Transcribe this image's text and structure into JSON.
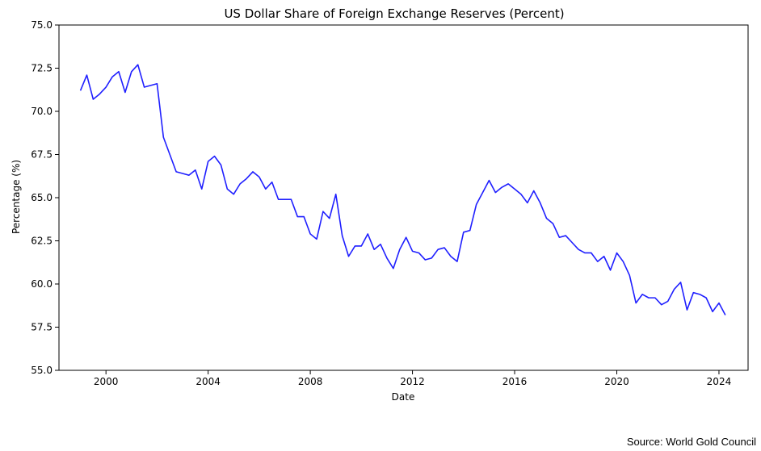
{
  "colors": {
    "line": "#1f1fff",
    "axis": "#000000",
    "background": "#ffffff"
  },
  "source_note": "Source: World Gold Council",
  "chart_data": {
    "type": "line",
    "title": "US Dollar Share of Foreign Exchange Reserves (Percent)",
    "xlabel": "Date",
    "ylabel": "Percentage (%)",
    "xlim": [
      1998.16,
      2025.14
    ],
    "ylim": [
      55.0,
      75.0
    ],
    "grid": false,
    "x_ticks": [
      2000,
      2004,
      2008,
      2012,
      2016,
      2020,
      2024
    ],
    "x_tick_labels": [
      "2000",
      "2004",
      "2008",
      "2012",
      "2016",
      "2020",
      "2024"
    ],
    "y_ticks": [
      55.0,
      57.5,
      60.0,
      62.5,
      65.0,
      67.5,
      70.0,
      72.5,
      75.0
    ],
    "y_tick_labels": [
      "55.0",
      "57.5",
      "60.0",
      "62.5",
      "65.0",
      "67.5",
      "70.0",
      "72.5",
      "75.0"
    ],
    "series": [
      {
        "x": [
          1999.0,
          1999.25,
          1999.5,
          1999.75,
          2000.0,
          2000.25,
          2000.5,
          2000.75,
          2001.0,
          2001.25,
          2001.5,
          2001.75,
          2002.0,
          2002.25,
          2002.5,
          2002.75,
          2003.0,
          2003.25,
          2003.5,
          2003.75,
          2004.0,
          2004.25,
          2004.5,
          2004.75,
          2005.0,
          2005.25,
          2005.5,
          2005.75,
          2006.0,
          2006.25,
          2006.5,
          2006.75,
          2007.0,
          2007.25,
          2007.5,
          2007.75,
          2008.0,
          2008.25,
          2008.5,
          2008.75,
          2009.0,
          2009.25,
          2009.5,
          2009.75,
          2010.0,
          2010.25,
          2010.5,
          2010.75,
          2011.0,
          2011.25,
          2011.5,
          2011.75,
          2012.0,
          2012.25,
          2012.5,
          2012.75,
          2013.0,
          2013.25,
          2013.5,
          2013.75,
          2014.0,
          2014.25,
          2014.5,
          2014.75,
          2015.0,
          2015.25,
          2015.5,
          2015.75,
          2016.0,
          2016.25,
          2016.5,
          2016.75,
          2017.0,
          2017.25,
          2017.5,
          2017.75,
          2018.0,
          2018.25,
          2018.5,
          2018.75,
          2019.0,
          2019.25,
          2019.5,
          2019.75,
          2020.0,
          2020.25,
          2020.5,
          2020.75,
          2021.0,
          2021.25,
          2021.5,
          2021.75,
          2022.0,
          2022.25,
          2022.5,
          2022.75,
          2023.0,
          2023.25,
          2023.5,
          2023.75,
          2024.0,
          2024.25
        ],
        "values": [
          71.2,
          72.1,
          70.7,
          71.0,
          71.4,
          72.0,
          72.3,
          71.1,
          72.3,
          72.7,
          71.4,
          71.5,
          71.6,
          68.5,
          67.5,
          66.5,
          66.4,
          66.3,
          66.6,
          65.5,
          67.1,
          67.4,
          66.9,
          65.5,
          65.2,
          65.8,
          66.1,
          66.5,
          66.2,
          65.5,
          65.9,
          64.9,
          64.9,
          64.9,
          63.9,
          63.9,
          62.9,
          62.6,
          64.2,
          63.8,
          65.2,
          62.8,
          61.6,
          62.2,
          62.2,
          62.9,
          62.0,
          62.3,
          61.5,
          60.9,
          62.0,
          62.7,
          61.9,
          61.8,
          61.4,
          61.5,
          62.0,
          62.1,
          61.6,
          61.3,
          63.0,
          63.1,
          64.6,
          65.3,
          66.0,
          65.3,
          65.6,
          65.8,
          65.5,
          65.2,
          64.7,
          65.4,
          64.7,
          63.8,
          63.5,
          62.7,
          62.8,
          62.4,
          62.0,
          61.8,
          61.8,
          61.3,
          61.6,
          60.8,
          61.8,
          61.3,
          60.5,
          58.9,
          59.4,
          59.2,
          59.2,
          58.8,
          59.0,
          59.7,
          60.1,
          58.5,
          59.5,
          59.4,
          59.2,
          58.4,
          58.9,
          58.2
        ]
      }
    ]
  }
}
